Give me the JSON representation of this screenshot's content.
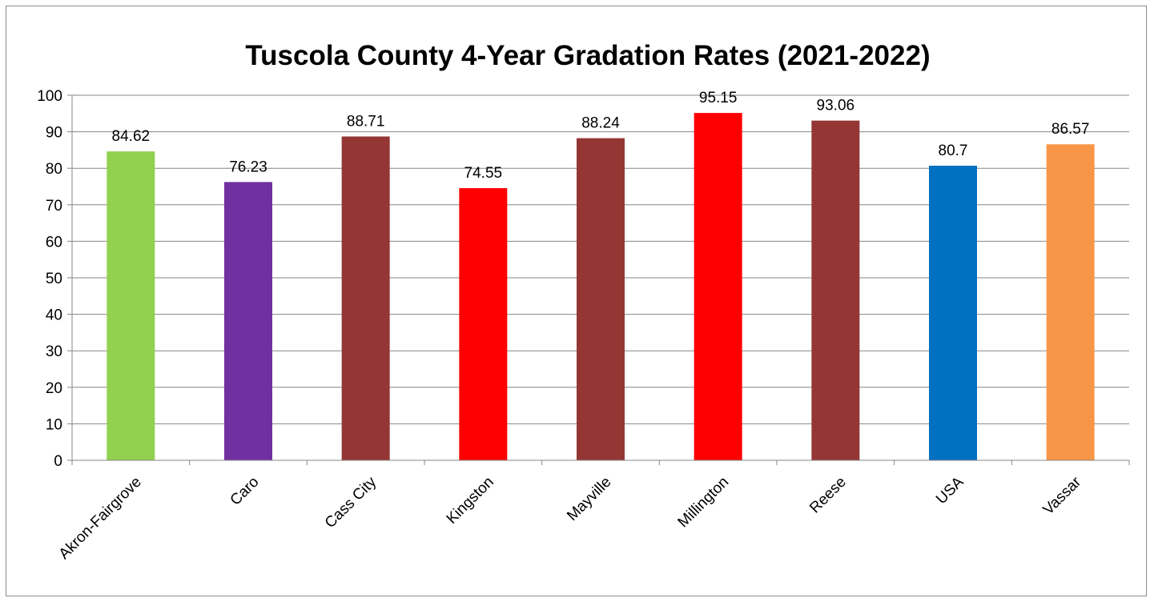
{
  "chart_data": {
    "type": "bar",
    "title": "Tuscola County 4-Year Gradation Rates (2021-2022)",
    "xlabel": "",
    "ylabel": "",
    "ylim": [
      0,
      100
    ],
    "yticks": [
      0,
      10,
      20,
      30,
      40,
      50,
      60,
      70,
      80,
      90,
      100
    ],
    "grid": true,
    "legend": "none",
    "categories": [
      "Akron-Fairgrove",
      "Caro",
      "Cass City",
      "Kingston",
      "Mayville",
      "Millington",
      "Reese",
      "USA",
      "Vassar"
    ],
    "values": [
      84.62,
      76.23,
      88.71,
      74.55,
      88.24,
      95.15,
      93.06,
      80.7,
      86.57
    ],
    "data_labels": [
      "84.62",
      "76.23",
      "88.71",
      "74.55",
      "88.24",
      "95.15",
      "93.06",
      "80.7",
      "86.57"
    ],
    "colors": [
      "#92d050",
      "#7030a0",
      "#943634",
      "#ff0000",
      "#943634",
      "#ff0000",
      "#943634",
      "#0070c0",
      "#f79646"
    ]
  }
}
